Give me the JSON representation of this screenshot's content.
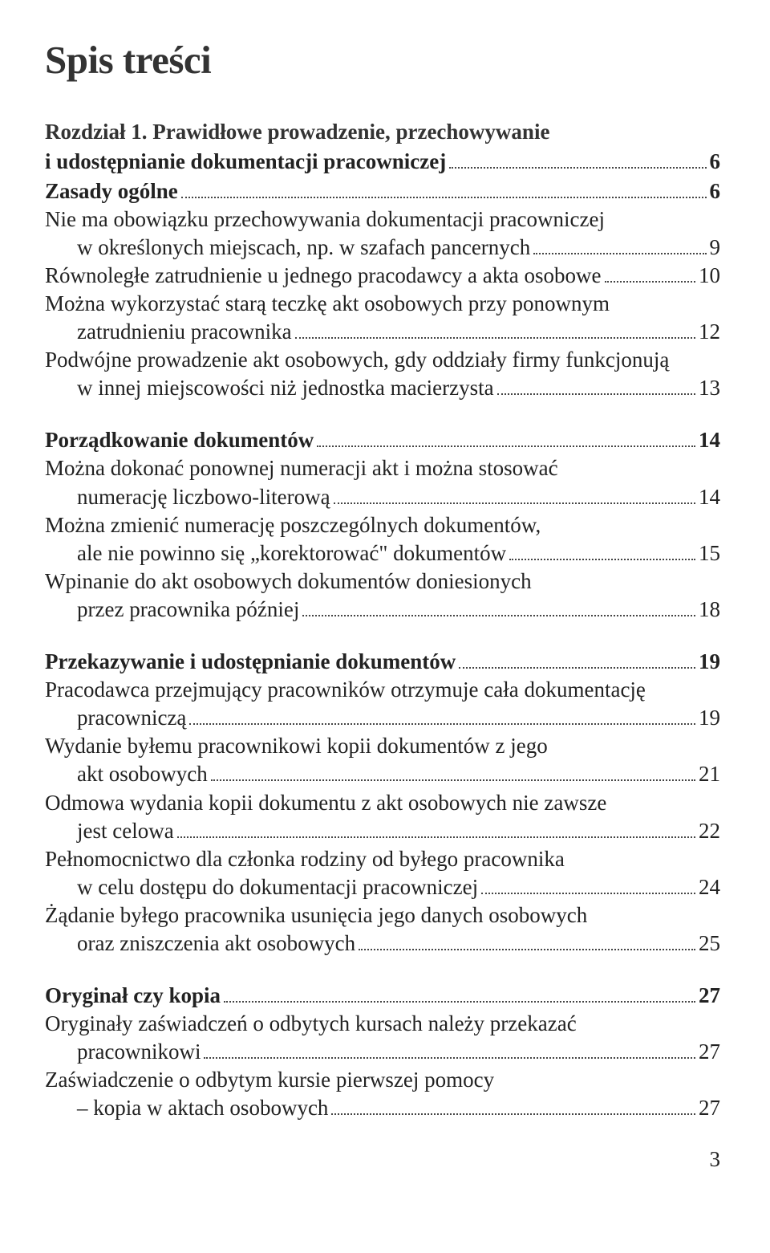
{
  "title": "Spis treści",
  "pageNumber": "3",
  "groups": [
    {
      "heading": [
        "Rozdział 1. Prawidłowe prowadzenie, przechowywanie",
        "i udostępnianie dokumentacji pracowniczej"
      ],
      "headingPage": "6",
      "entries": [
        {
          "lines": [
            "Zasady ogólne"
          ],
          "page": "6",
          "bold": true,
          "indentLast": false
        },
        {
          "lines": [
            "Nie ma obowiązku przechowywania dokumentacji pracowniczej",
            "w określonych miejscach, np. w szafach pancernych"
          ],
          "page": "9",
          "bold": false,
          "indentLast": true
        },
        {
          "lines": [
            "Równoległe zatrudnienie u jednego pracodawcy a akta osobowe"
          ],
          "page": "10",
          "bold": false,
          "indentLast": false
        },
        {
          "lines": [
            "Można wykorzystać starą teczkę akt osobowych przy ponownym",
            "zatrudnieniu pracownika"
          ],
          "page": "12",
          "bold": false,
          "indentLast": true
        },
        {
          "lines": [
            "Podwójne prowadzenie akt osobowych, gdy oddziały firmy funkcjonują",
            "w innej miejscowości niż jednostka macierzysta"
          ],
          "page": "13",
          "bold": false,
          "indentLast": true
        }
      ]
    },
    {
      "heading": null,
      "entries": [
        {
          "lines": [
            "Porządkowanie dokumentów"
          ],
          "page": "14",
          "bold": true,
          "indentLast": false
        },
        {
          "lines": [
            "Można dokonać ponownej numeracji  akt i można stosować",
            "numerację liczbowo-literową"
          ],
          "page": "14",
          "bold": false,
          "indentLast": true
        },
        {
          "lines": [
            "Można zmienić numerację poszczególnych dokumentów,",
            "ale nie powinno się „korektorować\" dokumentów"
          ],
          "page": "15",
          "bold": false,
          "indentLast": true
        },
        {
          "lines": [
            "Wpinanie do akt osobowych dokumentów doniesionych",
            "przez pracownika później"
          ],
          "page": "18",
          "bold": false,
          "indentLast": true
        }
      ]
    },
    {
      "heading": null,
      "entries": [
        {
          "lines": [
            "Przekazywanie i udostępnianie dokumentów"
          ],
          "page": "19",
          "bold": true,
          "indentLast": false
        },
        {
          "lines": [
            "Pracodawca przejmujący pracowników otrzymuje cała dokumentację",
            "pracowniczą"
          ],
          "page": "19",
          "bold": false,
          "indentLast": true
        },
        {
          "lines": [
            "Wydanie byłemu pracownikowi kopii dokumentów z jego",
            "akt osobowych"
          ],
          "page": "21",
          "bold": false,
          "indentLast": true
        },
        {
          "lines": [
            "Odmowa wydania kopii dokumentu z akt osobowych nie zawsze",
            "jest celowa"
          ],
          "page": "22",
          "bold": false,
          "indentLast": true
        },
        {
          "lines": [
            "Pełnomocnictwo dla członka rodziny od byłego pracownika",
            "w celu dostępu do dokumentacji pracowniczej"
          ],
          "page": "24",
          "bold": false,
          "indentLast": true
        },
        {
          "lines": [
            "Żądanie byłego pracownika usunięcia jego danych osobowych",
            "oraz zniszczenia akt osobowych"
          ],
          "page": "25",
          "bold": false,
          "indentLast": true
        }
      ]
    },
    {
      "heading": null,
      "entries": [
        {
          "lines": [
            "Oryginał czy kopia"
          ],
          "page": "27",
          "bold": true,
          "indentLast": false
        },
        {
          "lines": [
            "Oryginały zaświadczeń o odbytych kursach należy przekazać",
            "pracownikowi"
          ],
          "page": "27",
          "bold": false,
          "indentLast": true
        },
        {
          "lines": [
            "Zaświadczenie o odbytym kursie pierwszej pomocy",
            "– kopia w aktach osobowych"
          ],
          "page": "27",
          "bold": false,
          "indentLast": true
        }
      ]
    }
  ]
}
